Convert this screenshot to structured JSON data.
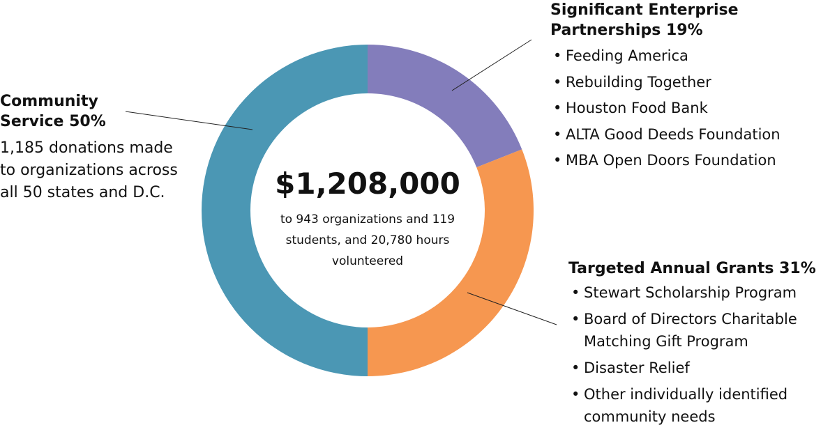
{
  "chart_data": {
    "type": "pie",
    "categories": [
      "Significant Enterprise Partnerships",
      "Targeted Annual Grants",
      "Community Service"
    ],
    "values": [
      19,
      31,
      50
    ],
    "colors": [
      "#837dbb",
      "#f69750",
      "#4b97b4"
    ],
    "center": {
      "amount": "$1,208,000",
      "description": "to 943 organizations and 119 students, and 20,780 hours volunteered"
    }
  },
  "labels": {
    "community_service": {
      "title": "Community Service 50%",
      "description": "1,185 donations made to organizations across all 50 states and D.C."
    },
    "enterprise_partnerships": {
      "title": "Significant Enterprise Partnerships 19%",
      "items": [
        "Feeding America",
        "Rebuilding Together",
        "Houston Food Bank",
        "ALTA Good Deeds Foundation",
        "MBA Open Doors Foundation"
      ]
    },
    "targeted_grants": {
      "title": "Targeted Annual Grants 31%",
      "items": [
        "Stewart Scholarship Program",
        "Board of Directors Charitable Matching Gift Program",
        "Disaster Relief",
        "Other individually identified community needs"
      ]
    }
  }
}
